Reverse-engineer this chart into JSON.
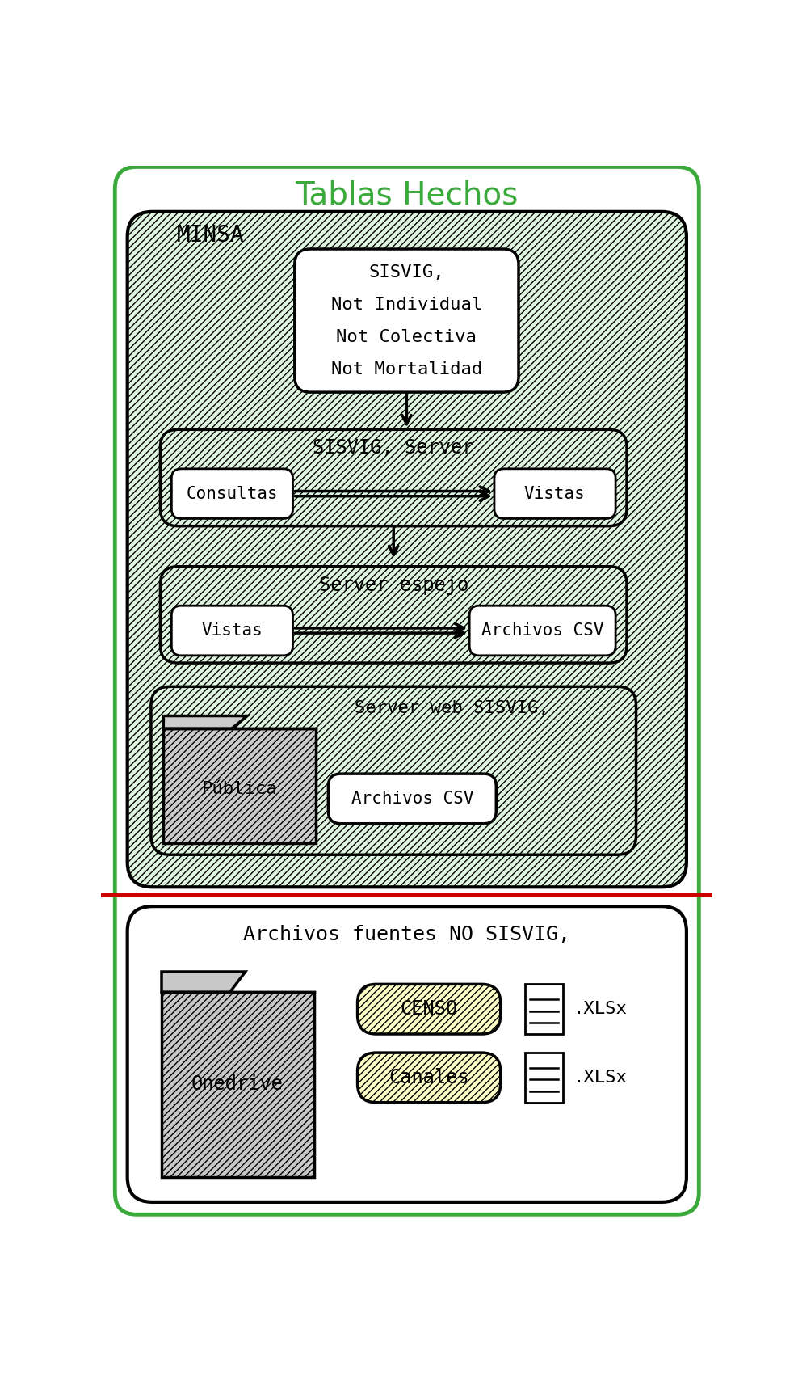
{
  "title": "Tablas Hechos",
  "title_color": "#3aaa3a",
  "title_fontsize": 26,
  "bg_color": "#ffffff",
  "outer_border_color": "#3aaa3a",
  "minsa_bg": "#e0f5e0",
  "minsa_label": "MINSA",
  "box2_label": "SISVIG, Server",
  "box2a_text": "Consultas",
  "box2b_text": "Vistas",
  "box3_label": "Server espejo",
  "box3a_text": "Vistas",
  "box3b_text": "Archivos CSV",
  "box4_label": "Server web SISVIG,",
  "box4a_text": "Pública",
  "box4b_text": "Archivos CSV",
  "section2_label": "Archivos fuentes NO SISVIG,",
  "onedrive_text": "Onedrive",
  "censo_text": "CENSO",
  "canales_text": "Canales",
  "xlsx_text": ".XLSx",
  "red_line_color": "#cc0000",
  "sisvig_lines": [
    "SISVIG,",
    "Not Individual",
    "Not Colectiva",
    "Not Mortalidad"
  ]
}
